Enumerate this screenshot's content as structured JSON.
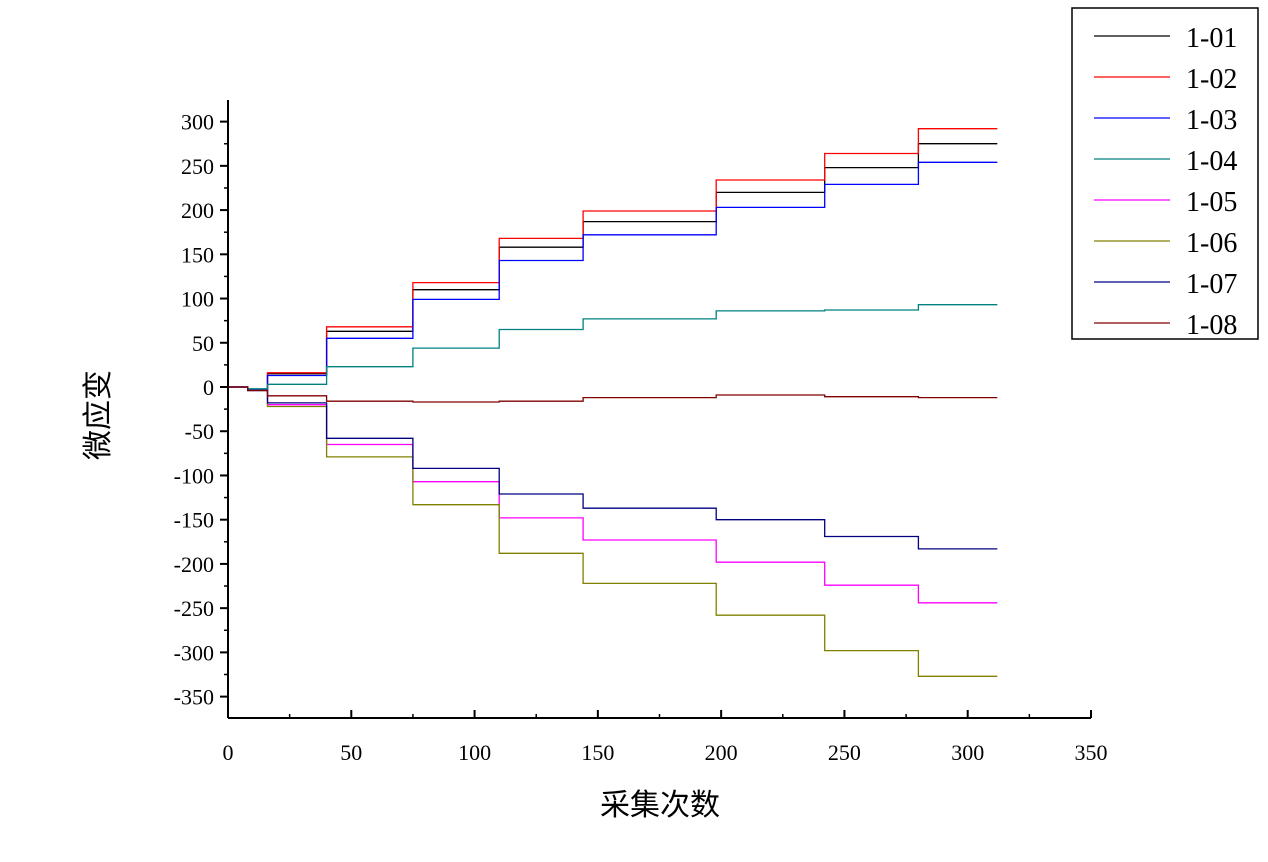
{
  "chart_data": {
    "type": "line",
    "title": "",
    "xlabel": "采集次数",
    "ylabel": "微应变",
    "xlim": [
      0,
      350
    ],
    "ylim": [
      -374,
      324
    ],
    "xticks": [
      0,
      50,
      100,
      150,
      200,
      250,
      300,
      350
    ],
    "yticks": [
      300,
      250,
      200,
      150,
      100,
      50,
      0,
      -50,
      -100,
      -150,
      -200,
      -250,
      -300,
      -350
    ],
    "grid": false,
    "legend_position": "top-right",
    "step_breaks": [
      0,
      8,
      16,
      40,
      75,
      110,
      144,
      198,
      242,
      280,
      312
    ],
    "series": [
      {
        "name": "1-01",
        "color": "#000000",
        "values": [
          0,
          -3,
          15,
          63,
          110,
          158,
          187,
          220,
          248,
          275
        ]
      },
      {
        "name": "1-02",
        "color": "#ff0000",
        "values": [
          0,
          -3,
          16,
          68,
          118,
          168,
          199,
          234,
          264,
          292
        ]
      },
      {
        "name": "1-03",
        "color": "#0000ff",
        "values": [
          0,
          -3,
          13,
          55,
          99,
          143,
          172,
          203,
          229,
          254
        ]
      },
      {
        "name": "1-04",
        "color": "#008080",
        "values": [
          0,
          -2,
          3,
          23,
          44,
          65,
          77,
          86,
          87,
          93
        ]
      },
      {
        "name": "1-05",
        "color": "#ff00ff",
        "values": [
          0,
          -4,
          -20,
          -65,
          -107,
          -148,
          -173,
          -198,
          -224,
          -244
        ]
      },
      {
        "name": "1-06",
        "color": "#808000",
        "values": [
          0,
          -4,
          -22,
          -79,
          -133,
          -188,
          -222,
          -258,
          -298,
          -327
        ]
      },
      {
        "name": "1-07",
        "color": "#000080",
        "values": [
          0,
          -4,
          -18,
          -58,
          -92,
          -121,
          -137,
          -150,
          -169,
          -183
        ]
      },
      {
        "name": "1-08",
        "color": "#800000",
        "values": [
          0,
          -4,
          -10,
          -16,
          -17,
          -16,
          -12,
          -9,
          -11,
          -12
        ]
      }
    ]
  }
}
